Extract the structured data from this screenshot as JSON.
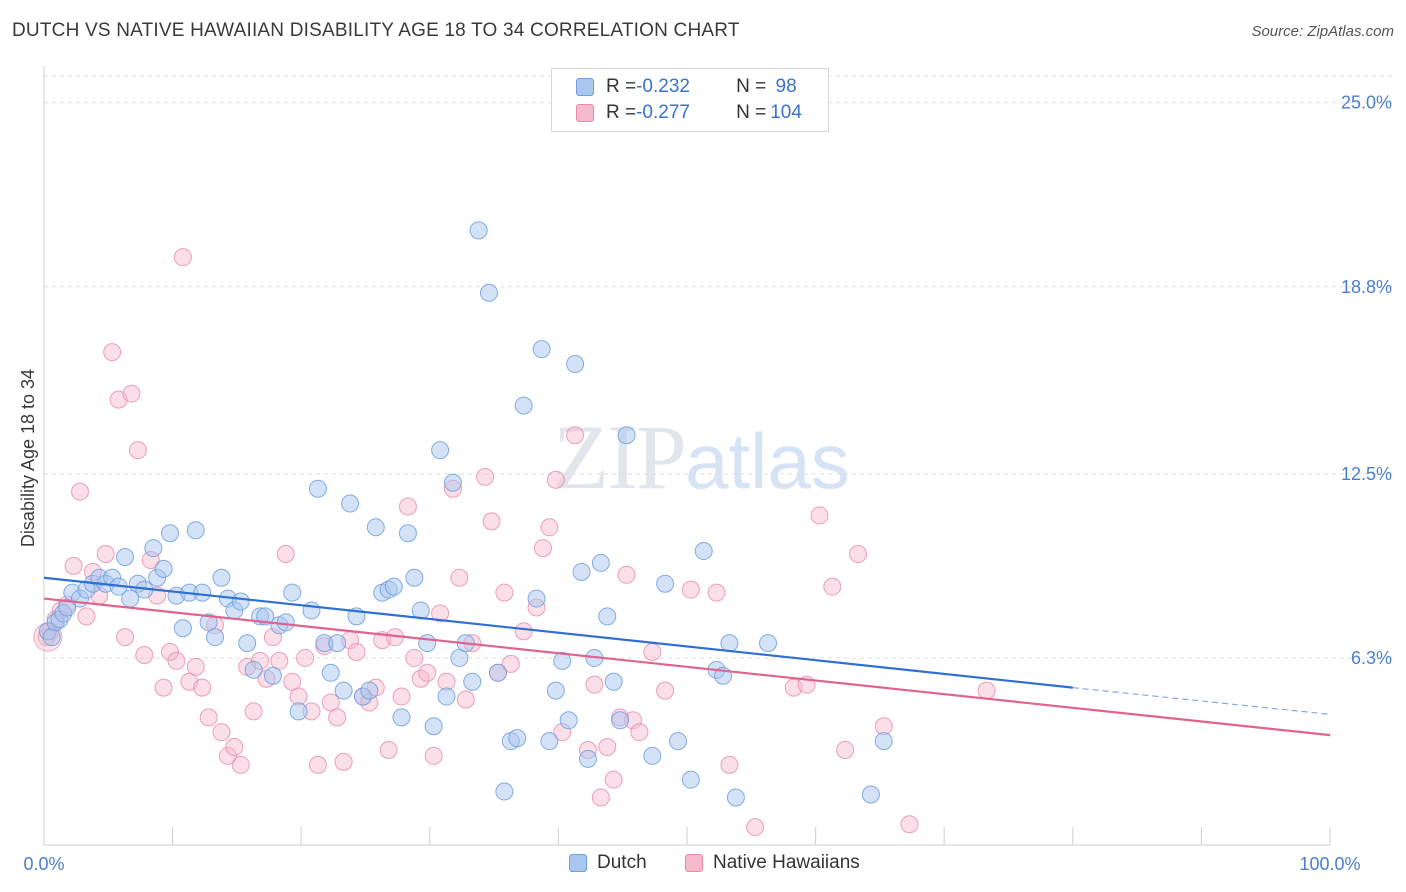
{
  "title": "DUTCH VS NATIVE HAWAIIAN DISABILITY AGE 18 TO 34 CORRELATION CHART",
  "source": "Source: ZipAtlas.com",
  "watermark": {
    "part1": "ZIP",
    "part2": "atlas"
  },
  "legend": {
    "rows": [
      {
        "r_label": "R = ",
        "r_value": "-0.232",
        "n_label": "N = ",
        "n_value": " 98"
      },
      {
        "r_label": "R = ",
        "r_value": "-0.277",
        "n_label": "N = ",
        "n_value": "104"
      }
    ]
  },
  "bottom_legend": [
    "Dutch",
    "Native Hawaiians"
  ],
  "colors": {
    "dutch_fill": "#a9c6ef",
    "dutch_stroke": "#6f9fdc",
    "dutch_line": "#2f6fd1",
    "hawaiian_fill": "#f6b8cb",
    "hawaiian_stroke": "#e88aa8",
    "hawaiian_line": "#e0628e",
    "grid": "#dddddd",
    "tick_label": "#4a7fcf"
  },
  "chart_data": {
    "type": "scatter",
    "title": "DUTCH VS NATIVE HAWAIIAN DISABILITY AGE 18 TO 34 CORRELATION CHART",
    "xlabel": "",
    "ylabel": "Disability Age 18 to 34",
    "xlim": [
      0,
      100
    ],
    "ylim": [
      0,
      25.9
    ],
    "x_tick_labels": [
      "0.0%",
      "100.0%"
    ],
    "y_ticks": [
      6.3,
      12.5,
      18.8,
      25.0
    ],
    "y_tick_labels": [
      "6.3%",
      "12.5%",
      "18.8%",
      "25.0%"
    ],
    "grid": "horizontal dashed",
    "legend_position": "top-center",
    "series": [
      {
        "name": "Dutch",
        "r": -0.232,
        "n": 98,
        "trend": {
          "x0": 0,
          "y0": 9.0,
          "x1": 80,
          "y1": 5.3,
          "dashed_to_x": 100,
          "dashed_to_y": 4.4
        },
        "points": [
          [
            0.3,
            7.2
          ],
          [
            0.6,
            7.0
          ],
          [
            0.9,
            7.5
          ],
          [
            1.2,
            7.6
          ],
          [
            1.5,
            7.8
          ],
          [
            1.8,
            8.0
          ],
          [
            2.2,
            8.5
          ],
          [
            2.8,
            8.3
          ],
          [
            3.3,
            8.6
          ],
          [
            3.8,
            8.8
          ],
          [
            4.3,
            9.0
          ],
          [
            4.8,
            8.8
          ],
          [
            5.3,
            9.0
          ],
          [
            5.8,
            8.7
          ],
          [
            6.3,
            9.7
          ],
          [
            6.7,
            8.3
          ],
          [
            7.3,
            8.8
          ],
          [
            7.8,
            8.6
          ],
          [
            8.5,
            10.0
          ],
          [
            8.8,
            9.0
          ],
          [
            9.3,
            9.3
          ],
          [
            9.8,
            10.5
          ],
          [
            10.3,
            8.4
          ],
          [
            10.8,
            7.3
          ],
          [
            11.3,
            8.5
          ],
          [
            11.8,
            10.6
          ],
          [
            12.3,
            8.5
          ],
          [
            12.8,
            7.5
          ],
          [
            13.3,
            7.0
          ],
          [
            13.8,
            9.0
          ],
          [
            14.3,
            8.3
          ],
          [
            14.8,
            7.9
          ],
          [
            15.3,
            8.2
          ],
          [
            15.8,
            6.8
          ],
          [
            16.3,
            5.9
          ],
          [
            16.8,
            7.7
          ],
          [
            17.2,
            7.7
          ],
          [
            17.8,
            5.7
          ],
          [
            18.3,
            7.4
          ],
          [
            18.8,
            7.5
          ],
          [
            19.3,
            8.5
          ],
          [
            19.8,
            4.5
          ],
          [
            20.8,
            7.9
          ],
          [
            21.3,
            12.0
          ],
          [
            21.8,
            6.8
          ],
          [
            22.3,
            5.8
          ],
          [
            22.8,
            6.8
          ],
          [
            23.3,
            5.2
          ],
          [
            23.8,
            11.5
          ],
          [
            24.3,
            7.7
          ],
          [
            24.8,
            5.0
          ],
          [
            25.3,
            5.2
          ],
          [
            25.8,
            10.7
          ],
          [
            26.3,
            8.5
          ],
          [
            26.8,
            8.6
          ],
          [
            27.2,
            8.7
          ],
          [
            27.8,
            4.3
          ],
          [
            28.3,
            10.5
          ],
          [
            28.8,
            9.0
          ],
          [
            29.3,
            7.9
          ],
          [
            29.8,
            6.8
          ],
          [
            30.3,
            4.0
          ],
          [
            30.8,
            13.3
          ],
          [
            31.3,
            5.0
          ],
          [
            31.8,
            12.2
          ],
          [
            32.3,
            6.3
          ],
          [
            32.8,
            6.8
          ],
          [
            33.3,
            5.5
          ],
          [
            33.8,
            20.7
          ],
          [
            34.6,
            18.6
          ],
          [
            35.3,
            5.8
          ],
          [
            35.8,
            1.8
          ],
          [
            36.3,
            3.5
          ],
          [
            36.8,
            3.6
          ],
          [
            37.3,
            14.8
          ],
          [
            38.3,
            8.3
          ],
          [
            38.7,
            16.7
          ],
          [
            39.3,
            3.5
          ],
          [
            39.8,
            5.2
          ],
          [
            40.3,
            6.2
          ],
          [
            40.8,
            4.2
          ],
          [
            41.3,
            16.2
          ],
          [
            41.8,
            9.2
          ],
          [
            42.3,
            2.9
          ],
          [
            42.8,
            6.3
          ],
          [
            43.3,
            9.5
          ],
          [
            43.8,
            7.7
          ],
          [
            44.3,
            5.5
          ],
          [
            44.8,
            4.2
          ],
          [
            45.3,
            13.8
          ],
          [
            47.3,
            3.0
          ],
          [
            48.3,
            8.8
          ],
          [
            49.3,
            3.5
          ],
          [
            50.3,
            2.2
          ],
          [
            51.3,
            9.9
          ],
          [
            52.3,
            5.9
          ],
          [
            52.8,
            5.7
          ],
          [
            53.3,
            6.8
          ],
          [
            53.8,
            1.6
          ],
          [
            56.3,
            6.8
          ],
          [
            64.3,
            1.7
          ],
          [
            65.3,
            3.5
          ]
        ]
      },
      {
        "name": "Native Hawaiians",
        "r": -0.277,
        "n": 104,
        "trend": {
          "x0": 0,
          "y0": 8.3,
          "x1": 100,
          "y1": 3.7
        },
        "points": [
          [
            0.2,
            7.0
          ],
          [
            0.5,
            7.2
          ],
          [
            0.9,
            7.6
          ],
          [
            1.3,
            7.9
          ],
          [
            1.8,
            8.1
          ],
          [
            2.3,
            9.4
          ],
          [
            2.8,
            11.9
          ],
          [
            3.3,
            7.7
          ],
          [
            3.8,
            9.2
          ],
          [
            4.3,
            8.4
          ],
          [
            4.8,
            9.8
          ],
          [
            5.3,
            16.6
          ],
          [
            5.8,
            15.0
          ],
          [
            6.3,
            7.0
          ],
          [
            6.8,
            15.2
          ],
          [
            7.3,
            13.3
          ],
          [
            7.8,
            6.4
          ],
          [
            8.3,
            9.6
          ],
          [
            8.8,
            8.4
          ],
          [
            9.3,
            5.3
          ],
          [
            9.8,
            6.5
          ],
          [
            10.3,
            6.2
          ],
          [
            10.8,
            19.8
          ],
          [
            11.3,
            5.5
          ],
          [
            11.8,
            6.0
          ],
          [
            12.3,
            5.3
          ],
          [
            12.8,
            4.3
          ],
          [
            13.3,
            7.4
          ],
          [
            13.8,
            3.8
          ],
          [
            14.3,
            3.0
          ],
          [
            14.8,
            3.3
          ],
          [
            15.3,
            2.7
          ],
          [
            15.8,
            6.0
          ],
          [
            16.3,
            4.5
          ],
          [
            16.8,
            6.2
          ],
          [
            17.3,
            5.6
          ],
          [
            17.8,
            7.0
          ],
          [
            18.3,
            6.2
          ],
          [
            18.8,
            9.8
          ],
          [
            19.3,
            5.5
          ],
          [
            19.8,
            5.0
          ],
          [
            20.3,
            6.3
          ],
          [
            20.8,
            4.5
          ],
          [
            21.3,
            2.7
          ],
          [
            21.8,
            6.7
          ],
          [
            22.3,
            4.8
          ],
          [
            22.8,
            4.3
          ],
          [
            23.3,
            2.8
          ],
          [
            23.8,
            6.9
          ],
          [
            24.3,
            6.5
          ],
          [
            24.8,
            5.0
          ],
          [
            25.3,
            4.8
          ],
          [
            25.8,
            5.3
          ],
          [
            26.3,
            6.9
          ],
          [
            26.8,
            3.2
          ],
          [
            27.3,
            7.0
          ],
          [
            27.8,
            5.0
          ],
          [
            28.3,
            11.4
          ],
          [
            28.8,
            6.3
          ],
          [
            29.3,
            5.6
          ],
          [
            29.8,
            5.8
          ],
          [
            30.3,
            3.0
          ],
          [
            30.8,
            7.8
          ],
          [
            31.3,
            5.5
          ],
          [
            31.8,
            12.0
          ],
          [
            32.3,
            9.0
          ],
          [
            32.8,
            4.9
          ],
          [
            33.3,
            6.8
          ],
          [
            34.3,
            12.4
          ],
          [
            34.8,
            10.9
          ],
          [
            35.3,
            5.8
          ],
          [
            35.8,
            8.5
          ],
          [
            36.3,
            6.1
          ],
          [
            37.3,
            7.2
          ],
          [
            38.3,
            8.0
          ],
          [
            38.8,
            10.0
          ],
          [
            39.3,
            10.7
          ],
          [
            39.8,
            12.3
          ],
          [
            40.3,
            3.8
          ],
          [
            41.3,
            13.8
          ],
          [
            42.3,
            3.2
          ],
          [
            42.8,
            5.4
          ],
          [
            43.3,
            1.6
          ],
          [
            43.8,
            3.3
          ],
          [
            44.3,
            2.2
          ],
          [
            44.8,
            4.3
          ],
          [
            45.3,
            9.1
          ],
          [
            45.8,
            4.2
          ],
          [
            46.3,
            3.8
          ],
          [
            47.3,
            6.5
          ],
          [
            48.3,
            5.2
          ],
          [
            50.3,
            8.6
          ],
          [
            52.3,
            8.5
          ],
          [
            53.3,
            2.7
          ],
          [
            55.3,
            0.6
          ],
          [
            58.3,
            5.3
          ],
          [
            59.3,
            5.4
          ],
          [
            60.3,
            11.1
          ],
          [
            61.3,
            8.7
          ],
          [
            62.3,
            3.2
          ],
          [
            63.3,
            9.8
          ],
          [
            65.3,
            4.0
          ],
          [
            67.3,
            0.7
          ],
          [
            73.3,
            5.2
          ]
        ]
      }
    ]
  }
}
